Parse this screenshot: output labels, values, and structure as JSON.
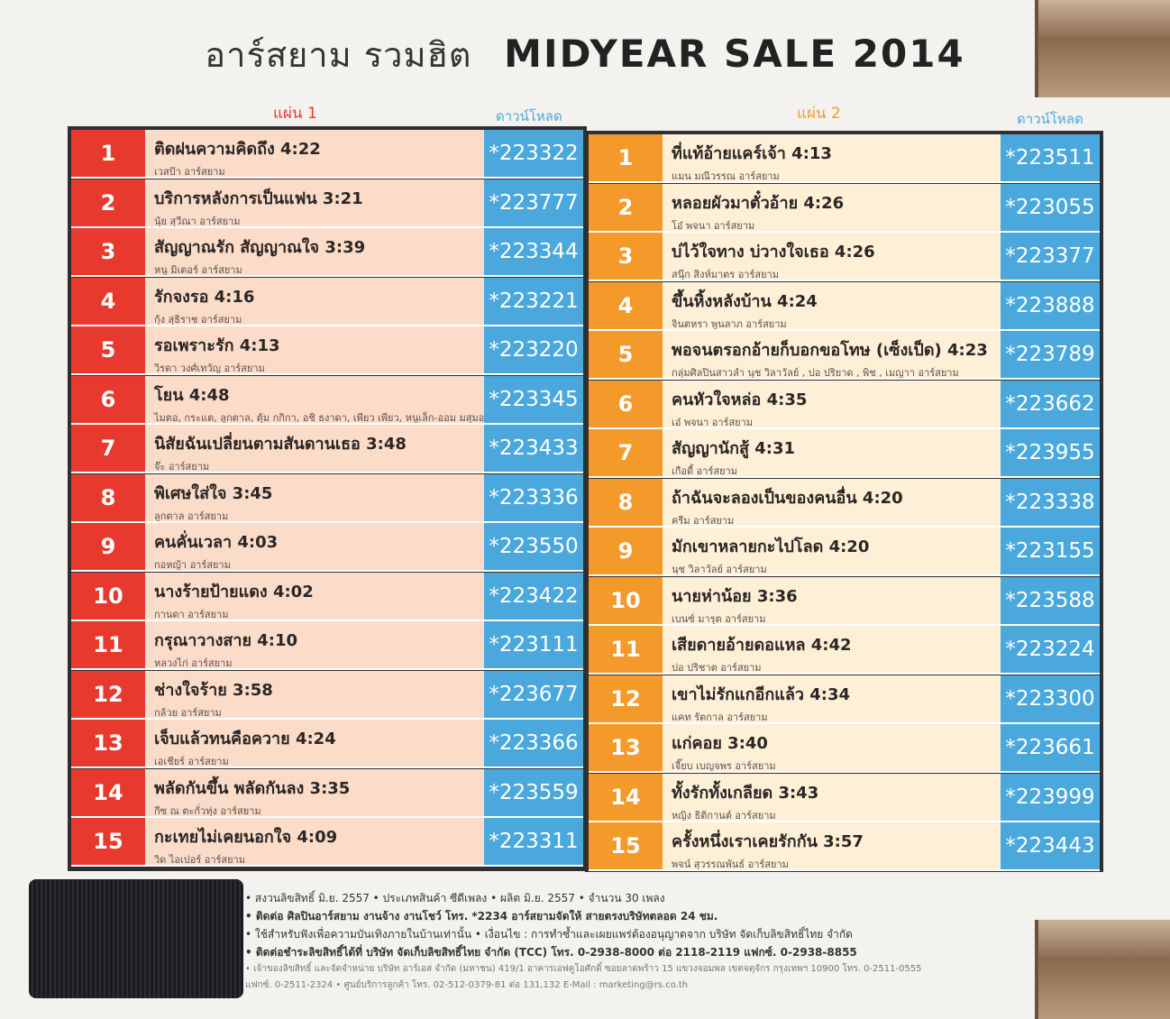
{
  "title": {
    "thai": "อาร์สยาม รวมฮิต",
    "english": "MIDYEAR SALE 2014"
  },
  "colors": {
    "disc1_number": "#e8392e",
    "disc1_song": "#fbdcc8",
    "disc2_number": "#f39a2a",
    "disc2_song": "#fdf0d6",
    "code": "#4aa8dc",
    "border": "#2f2f33"
  },
  "discs": [
    {
      "label": "แผ่น 1",
      "download_label": "ดาวน์โหลด",
      "tracks": [
        {
          "n": "1",
          "title": "ติดฝนความคิดถึง 4:22",
          "artist": "เวสป้า อาร์สยาม",
          "code": "*223322"
        },
        {
          "n": "2",
          "title": "บริการหลังการเป็นแฟน 3:21",
          "artist": "นุ้ย สุวีณา อาร์สยาม",
          "code": "*223777"
        },
        {
          "n": "3",
          "title": "สัญญาณรัก สัญญาณใจ 3:39",
          "artist": "หนู มิเตอร์ อาร์สยาม",
          "code": "*223344"
        },
        {
          "n": "4",
          "title": "รักจงรอ 4:16",
          "artist": "กุ้ง สุธิราช อาร์สยาม",
          "code": "*223221"
        },
        {
          "n": "5",
          "title": "รอเพราะรัก 4:13",
          "artist": "วิรดา วงศ์เทวัญ อาร์สยาม",
          "code": "*223220"
        },
        {
          "n": "6",
          "title": "โยน 4:48",
          "artist": "ไมตอ, กระแต, ลูกตาล, ตุ้ม กกิกา, อชิ ธงาดา, เพียว เพียว, หนูเล็ก-ออม มสุมอร์รี่ อาร์สยาม",
          "code": "*223345"
        },
        {
          "n": "7",
          "title": "นิสัยฉันเปลี่ยนตามสันดานเธอ 3:48",
          "artist": "จ๊ะ อาร์สยาม",
          "code": "*223433"
        },
        {
          "n": "8",
          "title": "พิเศษใส่ใจ 3:45",
          "artist": "ลูกตาล อาร์สยาม",
          "code": "*223336"
        },
        {
          "n": "9",
          "title": "คนคั่นเวลา 4:03",
          "artist": "กอหญ้า อาร์สยาม",
          "code": "*223550"
        },
        {
          "n": "10",
          "title": "นางร้ายป้ายแดง 4:02",
          "artist": "กานดา อาร์สยาม",
          "code": "*223422"
        },
        {
          "n": "11",
          "title": "กรุณาวางสาย 4:10",
          "artist": "หลวงไก่ อาร์สยาม",
          "code": "*223111"
        },
        {
          "n": "12",
          "title": "ช่างใจร้าย 3:58",
          "artist": "กล้วย อาร์สยาม",
          "code": "*223677"
        },
        {
          "n": "13",
          "title": "เจ็บแล้วทนคือควาย 4:24",
          "artist": "เอเชียร์ อาร์สยาม",
          "code": "*223366"
        },
        {
          "n": "14",
          "title": "พลัดกันขึ้น พลัดกันลง 3:35",
          "artist": "กีซ ณ ตะกั่วทุ่ง อาร์สยาม",
          "code": "*223559"
        },
        {
          "n": "15",
          "title": "กะเทยไม่เคยนอกใจ 4:09",
          "artist": "วิด ไอเปอร์ อาร์สยาม",
          "code": "*223311"
        }
      ]
    },
    {
      "label": "แผ่น 2",
      "download_label": "ดาวน์โหลด",
      "tracks": [
        {
          "n": "1",
          "title": "ที่แท้อ้ายแคร์เจ้า 4:13",
          "artist": "แมน มณีวรรณ อาร์สยาม",
          "code": "*223511"
        },
        {
          "n": "2",
          "title": "หลอยผัวมาตั๋วอ้าย 4:26",
          "artist": "โอ๋ พจนา อาร์สยาม",
          "code": "*223055"
        },
        {
          "n": "3",
          "title": "บ่ไว้ใจทาง บ่วางใจเธอ 4:26",
          "artist": "สนุ๊ก สิงห์มาตร อาร์สยาม",
          "code": "*223377"
        },
        {
          "n": "4",
          "title": "ขึ้นหิ้งหลังบ้าน 4:24",
          "artist": "จินตหรา พูนลาภ อาร์สยาม",
          "code": "*223888"
        },
        {
          "n": "5",
          "title": "พอจนตรอกอ้ายก็บอกขอโทษ (เซ็งเป็ด) 4:23",
          "artist": "กลุ่มศิลปินสาวลำ นุช วิลาวัลย์ , ปอ ปริยาด , พิช , เมญาา อาร์สยาม",
          "code": "*223789"
        },
        {
          "n": "6",
          "title": "คนหัวใจหล่อ 4:35",
          "artist": "เอ๋ พจนา อาร์สยาม",
          "code": "*223662"
        },
        {
          "n": "7",
          "title": "สัญญานักสู้ 4:31",
          "artist": "เกือดี้ อาร์สยาม",
          "code": "*223955"
        },
        {
          "n": "8",
          "title": "ถ้าฉันจะลองเป็นของคนอื่น 4:20",
          "artist": "ครีม อาร์สยาม",
          "code": "*223338"
        },
        {
          "n": "9",
          "title": "มักเขาหลายกะไปโลด 4:20",
          "artist": "นุช วิลาวัลย์ อาร์สยาม",
          "code": "*223155"
        },
        {
          "n": "10",
          "title": "นายห่าน้อย 3:36",
          "artist": "เบนซ์ มารุต อาร์สยาม",
          "code": "*223588"
        },
        {
          "n": "11",
          "title": "เสียดายอ้ายดอแหล 4:42",
          "artist": "ปอ ปริชาต อาร์สยาม",
          "code": "*223224"
        },
        {
          "n": "12",
          "title": "เขาไม่รักแกอีกแล้ว 4:34",
          "artist": "แคท รัตกาล อาร์สยาม",
          "code": "*223300"
        },
        {
          "n": "13",
          "title": "แก่คอย 3:40",
          "artist": "เจี๊ยบ เบญจพร อาร์สยาม",
          "code": "*223661"
        },
        {
          "n": "14",
          "title": "ทั้งรักทั้งเกลียด 3:43",
          "artist": "หญิง ธิติกานต์ อาร์สยาม",
          "code": "*223999"
        },
        {
          "n": "15",
          "title": "ครั้งหนึ่งเราเคยรักกัน 3:57",
          "artist": "พจน์ สุวรรณพันธ์ อาร์สยาม",
          "code": "*223443"
        }
      ]
    }
  ],
  "footer": {
    "lines": [
      "• สงวนลิขสิทธิ์ มิ.ย. 2557 • ประเภทสินค้า ซีดีเพลง • ผลิต มิ.ย. 2557 • จำนวน 30 เพลง",
      "• ติดต่อ ศิลปินอาร์สยาม งานจ้าง งานโชว์ โทร. *2234 อาร์สยามจัดให้ สายตรงบริษัทตลอด 24 ชม.",
      "• ใช้สำหรับฟังเพื่อความบันเทิงภายในบ้านเท่านั้น • เงื่อนไข : การทำซ้ำและเผยแพร่ต้องอนุญาตจาก บริษัท จัดเก็บลิขสิทธิ์ไทย จำกัด",
      "• ติดต่อชำระลิขสิทธิ์ได้ที่ บริษัท จัดเก็บลิขสิทธิ์ไทย จำกัด (TCC) โทร. 0-2938-8000 ต่อ 2118-2119 แฟกซ์. 0-2938-8855"
    ],
    "small_lines": [
      "• เจ้าของลิขสิทธิ์ และจัดจำหน่าย บริษัท อาร์เอส จำกัด (มหาชน) 419/1 อาคารเอฟคูโอศักดิ์ ซอยลาดพร้าว 15 แขวงจอมพล เขตจตุจักร กรุงเทพฯ 10900 โทร. 0-2511-0555",
      "แฟกซ์. 0-2511-2324 • ศูนย์บริการลูกค้า โทร. 02-512-0379-81 ต่อ 131,132 E-Mail : marketing@rs.co.th"
    ]
  }
}
